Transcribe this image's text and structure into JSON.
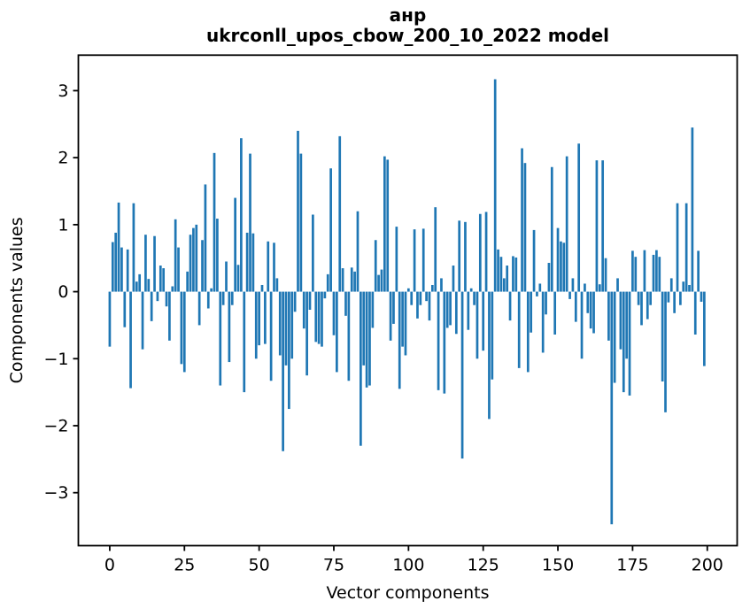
{
  "figure": {
    "background": "#ffffff"
  },
  "chart_data": {
    "type": "bar",
    "title_line1": "анр",
    "title_line2": "ukrconll_upos_cbow_200_10_2022 model",
    "xlabel": "Vector components",
    "ylabel": "Components values",
    "bar_color": "#1f77b4",
    "spine_color": "#000000",
    "grid": false,
    "legend": "none",
    "xticks": [
      0,
      25,
      50,
      75,
      100,
      125,
      150,
      175,
      200
    ],
    "yticks": [
      -3,
      -2,
      -1,
      0,
      1,
      2,
      3
    ],
    "xlim": [
      -10.5,
      210.0
    ],
    "ylim": [
      -3.79,
      3.53
    ],
    "x_start": 0,
    "values": [
      -0.82,
      0.74,
      0.88,
      1.33,
      0.66,
      -0.53,
      0.63,
      -1.44,
      1.32,
      0.15,
      0.26,
      -0.86,
      0.85,
      0.19,
      -0.44,
      0.83,
      -0.14,
      0.39,
      0.35,
      -0.22,
      -0.73,
      0.08,
      1.08,
      0.66,
      -1.08,
      -1.2,
      0.3,
      0.85,
      0.95,
      1.0,
      -0.5,
      0.77,
      1.6,
      -0.25,
      0.05,
      2.07,
      1.09,
      -1.4,
      -0.2,
      0.45,
      -1.05,
      -0.2,
      1.4,
      0.4,
      2.29,
      -1.5,
      0.88,
      2.06,
      0.87,
      -1.0,
      -0.8,
      0.1,
      -0.78,
      0.75,
      -1.33,
      0.73,
      0.2,
      -0.95,
      -2.38,
      -1.1,
      -1.75,
      -1.0,
      -0.3,
      2.4,
      2.06,
      -0.55,
      -1.25,
      -0.27,
      1.15,
      -0.75,
      -0.78,
      -0.82,
      -0.1,
      0.26,
      1.84,
      -0.65,
      -1.2,
      2.32,
      0.35,
      -0.36,
      -1.33,
      0.36,
      0.3,
      1.2,
      -2.3,
      -1.1,
      -1.43,
      -1.4,
      -0.54,
      0.77,
      0.25,
      0.33,
      2.02,
      1.97,
      -0.73,
      -0.48,
      0.97,
      -1.45,
      -0.82,
      -0.95,
      0.05,
      -0.2,
      0.93,
      -0.4,
      -0.2,
      0.94,
      -0.14,
      -0.43,
      0.1,
      1.26,
      -1.47,
      0.2,
      -1.52,
      -0.54,
      -0.5,
      0.39,
      -0.63,
      1.06,
      -2.49,
      1.04,
      -0.57,
      0.05,
      -0.2,
      -1.0,
      1.16,
      -0.88,
      1.19,
      -1.9,
      -1.31,
      3.17,
      0.63,
      0.52,
      0.2,
      0.39,
      -0.43,
      0.53,
      0.51,
      -1.14,
      2.14,
      1.92,
      -1.2,
      -0.61,
      0.92,
      -0.07,
      0.12,
      -0.91,
      -0.34,
      0.43,
      1.86,
      -0.64,
      0.95,
      0.75,
      0.73,
      2.02,
      -0.11,
      0.2,
      -0.45,
      2.21,
      -1.0,
      0.12,
      -0.32,
      -0.55,
      -0.62,
      1.96,
      0.11,
      1.96,
      0.5,
      -0.73,
      -3.47,
      -1.36,
      0.2,
      -0.86,
      -1.5,
      -1.0,
      -1.55,
      0.61,
      0.52,
      -0.2,
      -0.5,
      0.62,
      -0.41,
      -0.2,
      0.55,
      0.62,
      0.52,
      -1.34,
      -1.8,
      -0.16,
      0.2,
      -0.32,
      1.32,
      -0.2,
      0.15,
      1.32,
      0.1,
      2.45,
      -0.64,
      0.61,
      -0.15,
      -1.11
    ]
  }
}
